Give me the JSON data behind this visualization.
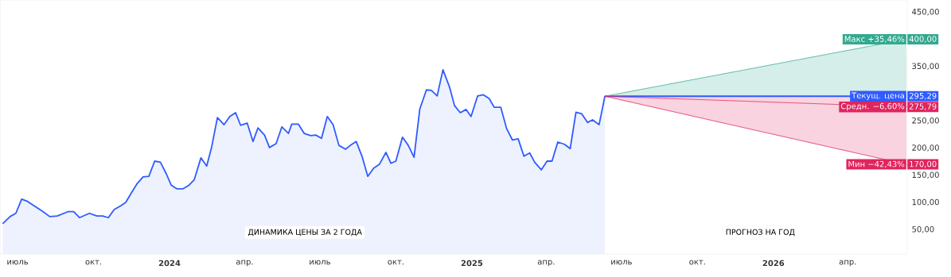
{
  "chart_data": {
    "type": "line",
    "legend": "right",
    "grid": false,
    "annotations": [
      "ДИНАМИКА ЦЕНЫ ЗА 2 ГОДА",
      "ПРОГНОЗ НА ГОД"
    ],
    "xticks": [
      {
        "value": "2023-07-01",
        "label": "июль"
      },
      {
        "value": "2023-10-01",
        "label": "окт."
      },
      {
        "value": "2024-01-01",
        "label": "2024"
      },
      {
        "value": "2024-04-01",
        "label": "апр."
      },
      {
        "value": "2024-07-01",
        "label": "июль"
      },
      {
        "value": "2024-10-01",
        "label": "окт."
      },
      {
        "value": "2025-01-01",
        "label": "2025"
      },
      {
        "value": "2025-04-01",
        "label": "апр."
      },
      {
        "value": "2025-07-01",
        "label": "июль"
      },
      {
        "value": "2025-10-01",
        "label": "окт."
      },
      {
        "value": "2026-01-01",
        "label": "2026"
      },
      {
        "value": "2026-04-01",
        "label": "апр."
      }
    ],
    "xlim": [
      "2023-06-10",
      "2026-06-12"
    ],
    "ylim": [
      5,
      472
    ],
    "yticks": [
      {
        "value": 50,
        "label": "50,00"
      },
      {
        "value": 100,
        "label": "100,00"
      },
      {
        "value": 150,
        "label": "150,00"
      },
      {
        "value": 200,
        "label": "200,00"
      },
      {
        "value": 250,
        "label": "250,00"
      },
      {
        "value": 350,
        "label": "350,00"
      },
      {
        "value": 450,
        "label": "450,00"
      }
    ],
    "series": [
      {
        "type": "area",
        "color": "#2f5bff",
        "x": [
          "2023-06-13",
          "2023-06-22",
          "2023-06-29",
          "2023-07-06",
          "2023-07-13",
          "2023-07-21",
          "2023-07-31",
          "2023-08-09",
          "2023-08-18",
          "2023-08-31",
          "2023-09-07",
          "2023-09-14",
          "2023-09-26",
          "2023-10-05",
          "2023-10-12",
          "2023-10-19",
          "2023-10-26",
          "2023-11-03",
          "2023-11-09",
          "2023-11-16",
          "2023-11-23",
          "2023-11-30",
          "2023-12-07",
          "2023-12-14",
          "2023-12-21",
          "2023-12-28",
          "2024-01-03",
          "2024-01-10",
          "2024-01-17",
          "2024-01-24",
          "2024-01-31",
          "2024-02-08",
          "2024-02-15",
          "2024-02-21",
          "2024-02-28",
          "2024-03-07",
          "2024-03-14",
          "2024-03-21",
          "2024-03-27",
          "2024-04-04",
          "2024-04-11",
          "2024-04-17",
          "2024-04-25",
          "2024-05-01",
          "2024-05-09",
          "2024-05-16",
          "2024-05-24",
          "2024-05-28",
          "2024-06-05",
          "2024-06-12",
          "2024-06-20",
          "2024-06-26",
          "2024-07-03",
          "2024-07-10",
          "2024-07-17",
          "2024-07-24",
          "2024-08-01",
          "2024-08-07",
          "2024-08-14",
          "2024-08-21",
          "2024-08-28",
          "2024-09-04",
          "2024-09-11",
          "2024-09-19",
          "2024-09-25",
          "2024-10-01",
          "2024-10-09",
          "2024-10-16",
          "2024-10-23",
          "2024-10-30",
          "2024-11-07",
          "2024-11-13",
          "2024-11-20",
          "2024-11-27",
          "2024-12-05",
          "2024-12-11",
          "2024-12-18",
          "2024-12-25",
          "2024-12-31",
          "2025-01-08",
          "2025-01-15",
          "2025-01-22",
          "2025-01-28",
          "2025-02-05",
          "2025-02-12",
          "2025-02-19",
          "2025-02-26",
          "2025-03-05",
          "2025-03-12",
          "2025-03-18",
          "2025-03-26",
          "2025-04-02",
          "2025-04-08",
          "2025-04-15",
          "2025-04-23",
          "2025-04-30",
          "2025-05-07",
          "2025-05-14",
          "2025-05-21",
          "2025-05-27",
          "2025-06-04",
          "2025-06-11"
        ],
        "values": [
          61,
          74,
          80,
          106,
          102,
          94,
          84,
          74,
          75,
          83,
          83,
          72,
          80,
          75,
          75,
          72,
          87,
          94,
          100,
          118,
          135,
          147,
          148,
          176,
          174,
          153,
          132,
          125,
          125,
          131,
          142,
          182,
          167,
          202,
          256,
          243,
          258,
          265,
          242,
          246,
          212,
          237,
          224,
          201,
          208,
          239,
          227,
          244,
          244,
          227,
          223,
          224,
          218,
          258,
          243,
          205,
          198,
          205,
          212,
          185,
          148,
          163,
          170,
          192,
          172,
          176,
          220,
          205,
          183,
          272,
          307,
          306,
          296,
          344,
          312,
          278,
          265,
          271,
          258,
          296,
          298,
          291,
          275,
          275,
          236,
          215,
          217,
          185,
          191,
          174,
          160,
          176,
          176,
          211,
          207,
          199,
          266,
          263,
          247,
          252,
          243,
          295.29
        ]
      },
      {
        "name": "Макс +35,46%",
        "color": "#33a98f",
        "line_style": "dotted",
        "x": [
          "2025-06-11",
          "2026-06-11"
        ],
        "values": [
          295.29,
          400
        ],
        "value_labels": [
          null,
          "400,00"
        ]
      },
      {
        "name": "Средн. −6,60%",
        "color": "#e0245e",
        "line_style": "dotted",
        "x": [
          "2025-06-11",
          "2026-06-11"
        ],
        "values": [
          295.29,
          275.79
        ],
        "value_labels": [
          null,
          "275,79"
        ]
      },
      {
        "name": "Мин −42,43%",
        "color": "#e0245e",
        "line_style": "dotted",
        "x": [
          "2025-06-11",
          "2026-06-11"
        ],
        "values": [
          295.29,
          170
        ],
        "value_labels": [
          null,
          "170,00"
        ]
      },
      {
        "name": "Текущ. цена",
        "color": "#2f5bff",
        "line_style": "solid",
        "x": [
          "2025-06-11",
          "2026-06-11"
        ],
        "values": [
          295.29,
          295.29
        ],
        "value_labels": [
          null,
          "295,29"
        ]
      }
    ]
  }
}
